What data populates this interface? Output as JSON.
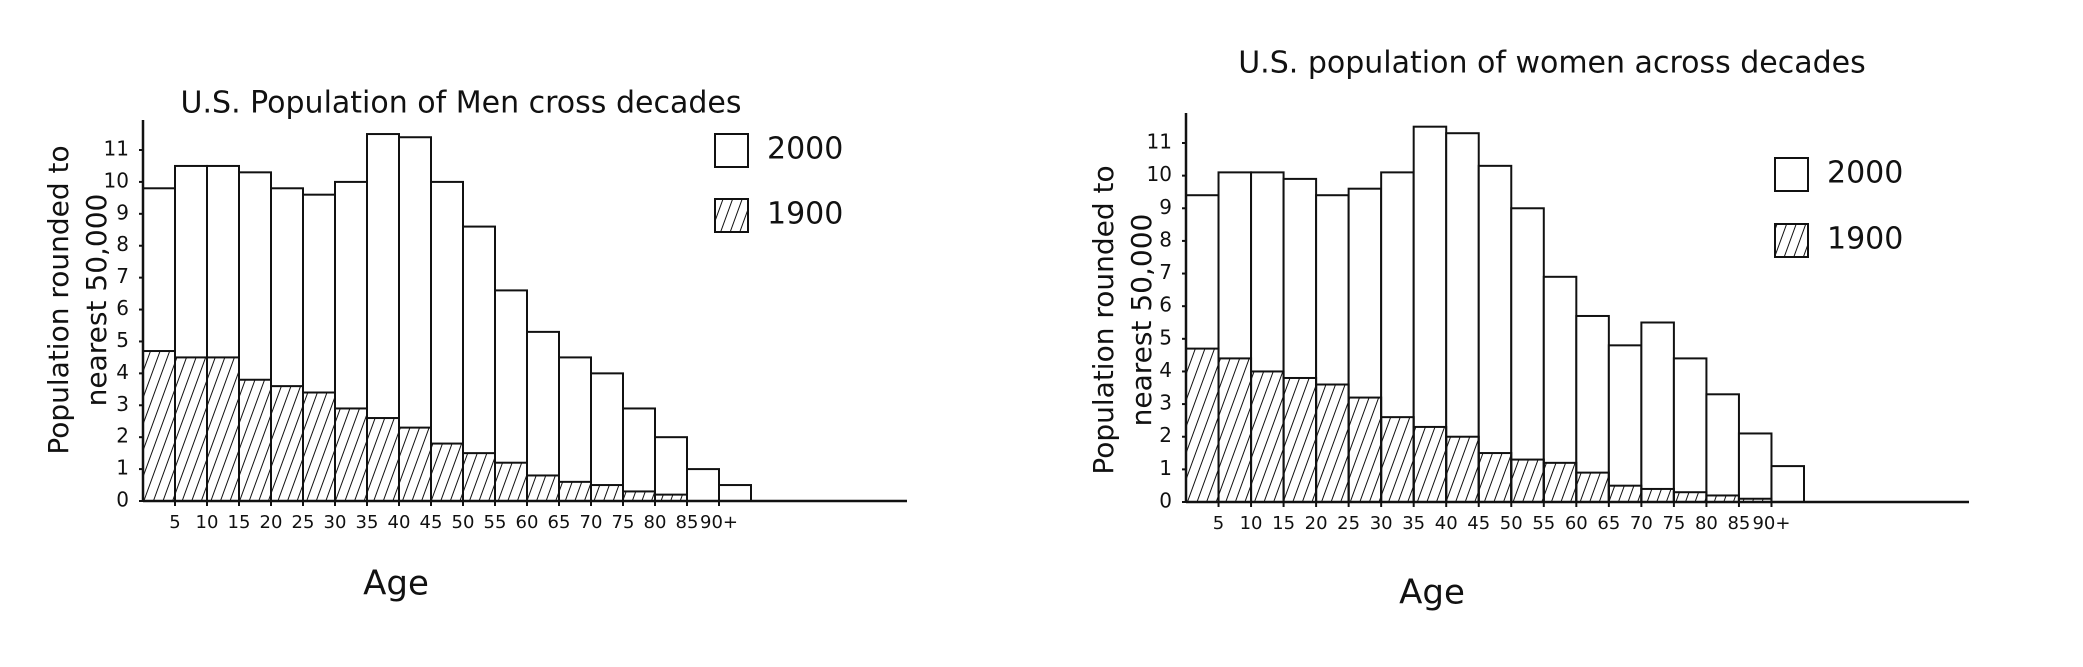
{
  "chart_data": [
    {
      "type": "histogram",
      "title": "U.S. Population of Men cross decades",
      "xlabel": "Age",
      "ylabel": [
        "Population rounded to",
        "nearest 50,000"
      ],
      "bins": [
        0,
        5,
        10,
        15,
        20,
        25,
        30,
        35,
        40,
        45,
        50,
        55,
        60,
        65,
        70,
        75,
        80,
        85,
        90,
        95
      ],
      "xlim": [
        0,
        95
      ],
      "xticks": [
        5,
        10,
        15,
        20,
        25,
        30,
        35,
        40,
        45,
        50,
        55,
        60,
        65,
        70,
        75,
        80,
        85,
        {
          "value": 90,
          "label": "90+"
        }
      ],
      "ylim": [
        0,
        11
      ],
      "yticks": [
        0,
        1,
        2,
        3,
        4,
        5,
        6,
        7,
        8,
        9,
        10,
        11
      ],
      "series": [
        {
          "name": "2000",
          "color": "#ffffff",
          "hatch": false,
          "values": [
            9.8,
            10.5,
            10.5,
            10.3,
            9.8,
            9.6,
            10,
            11.5,
            11.4,
            10,
            8.6,
            6.6,
            5.3,
            4.5,
            4,
            2.9,
            2,
            1,
            0.5
          ]
        },
        {
          "name": "1900",
          "color": "#ffffff",
          "hatch": true,
          "values": [
            4.7,
            4.5,
            4.5,
            3.8,
            3.6,
            3.4,
            2.9,
            2.6,
            2.3,
            1.8,
            1.5,
            1.2,
            0.8,
            0.6,
            0.5,
            0.3,
            0.2,
            0,
            0
          ]
        }
      ]
    },
    {
      "type": "histogram",
      "title": "U.S. population of women across decades",
      "xlabel": "Age",
      "ylabel": [
        "Population rounded to",
        "nearest 50,000"
      ],
      "bins": [
        0,
        5,
        10,
        15,
        20,
        25,
        30,
        35,
        40,
        45,
        50,
        55,
        60,
        65,
        70,
        75,
        80,
        85,
        90,
        95
      ],
      "xlim": [
        0,
        95
      ],
      "xticks": [
        5,
        10,
        15,
        20,
        25,
        30,
        35,
        40,
        45,
        50,
        55,
        60,
        65,
        70,
        75,
        80,
        85,
        {
          "value": 90,
          "label": "90+"
        }
      ],
      "ylim": [
        0,
        11
      ],
      "yticks": [
        0,
        1,
        2,
        3,
        4,
        5,
        6,
        7,
        8,
        9,
        10,
        11
      ],
      "series": [
        {
          "name": "2000",
          "color": "#ffffff",
          "hatch": false,
          "values": [
            9.4,
            10.1,
            10.1,
            9.9,
            9.4,
            9.6,
            10.1,
            11.5,
            11.3,
            10.3,
            9,
            6.9,
            5.7,
            4.8,
            5.5,
            4.4,
            3.3,
            2.1,
            1.1
          ]
        },
        {
          "name": "1900",
          "color": "#ffffff",
          "hatch": true,
          "values": [
            4.7,
            4.4,
            4,
            3.8,
            3.6,
            3.2,
            2.6,
            2.3,
            2,
            1.5,
            1.3,
            1.2,
            0.9,
            0.5,
            0.4,
            0.3,
            0.2,
            0.1,
            0
          ]
        }
      ]
    }
  ]
}
